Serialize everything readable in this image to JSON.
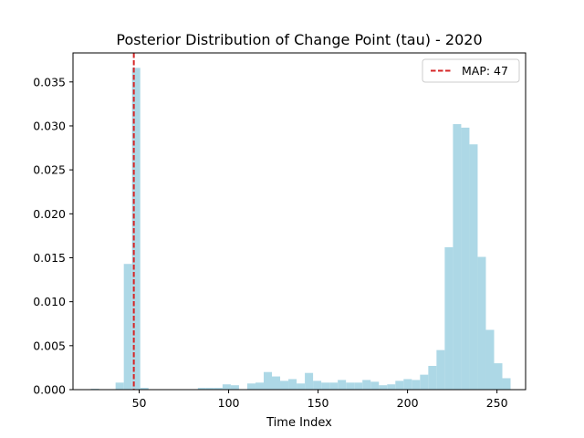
{
  "chart_data": {
    "type": "bar",
    "title": "Posterior Distribution of Change Point (tau) - 2020",
    "xlabel": "Time Index",
    "ylabel": "",
    "xlim": [
      13,
      266
    ],
    "ylim": [
      0,
      0.0383
    ],
    "xticks": [
      50,
      100,
      150,
      200,
      250
    ],
    "yticks": [
      "0.000",
      "0.005",
      "0.010",
      "0.015",
      "0.020",
      "0.025",
      "0.030",
      "0.035"
    ],
    "grid": false,
    "legend_position": "top-right",
    "bin_width": 4.6,
    "bins_start": [
      23,
      27.6,
      32.2,
      36.8,
      41.4,
      46,
      50.6,
      55.2,
      59.8,
      64.4,
      69,
      73.6,
      78.2,
      82.8,
      87.4,
      92,
      96.6,
      101.2,
      105.8,
      110.4,
      115,
      119.6,
      124.2,
      128.8,
      133.4,
      138,
      142.6,
      147.2,
      151.8,
      156.4,
      161,
      165.6,
      170.2,
      174.8,
      179.4,
      184,
      188.6,
      193.2,
      197.8,
      202.4,
      207,
      211.6,
      216.2,
      220.8,
      225.4,
      230,
      234.6,
      239.2,
      243.8,
      248.4,
      253
    ],
    "density": [
      0.0001,
      0,
      0,
      0.0008,
      0.0143,
      0.0366,
      0.0002,
      0,
      0,
      0,
      0,
      0,
      0,
      0.0002,
      0.0002,
      0.0002,
      0.0006,
      0.0005,
      0,
      0.0007,
      0.0008,
      0.002,
      0.0015,
      0.001,
      0.0012,
      0.0007,
      0.0019,
      0.001,
      0.0008,
      0.0008,
      0.0011,
      0.0008,
      0.0008,
      0.0011,
      0.0009,
      0.0005,
      0.0006,
      0.001,
      0.0012,
      0.0011,
      0.0017,
      0.0027,
      0.0045,
      0.0162,
      0.0302,
      0.0298,
      0.0279,
      0.0151,
      0.0068,
      0.003,
      0.0013
    ],
    "bar_color": "#add8e6",
    "vline": {
      "x": 47,
      "color": "#d62728",
      "style": "dashed",
      "label": "MAP: 47"
    }
  }
}
